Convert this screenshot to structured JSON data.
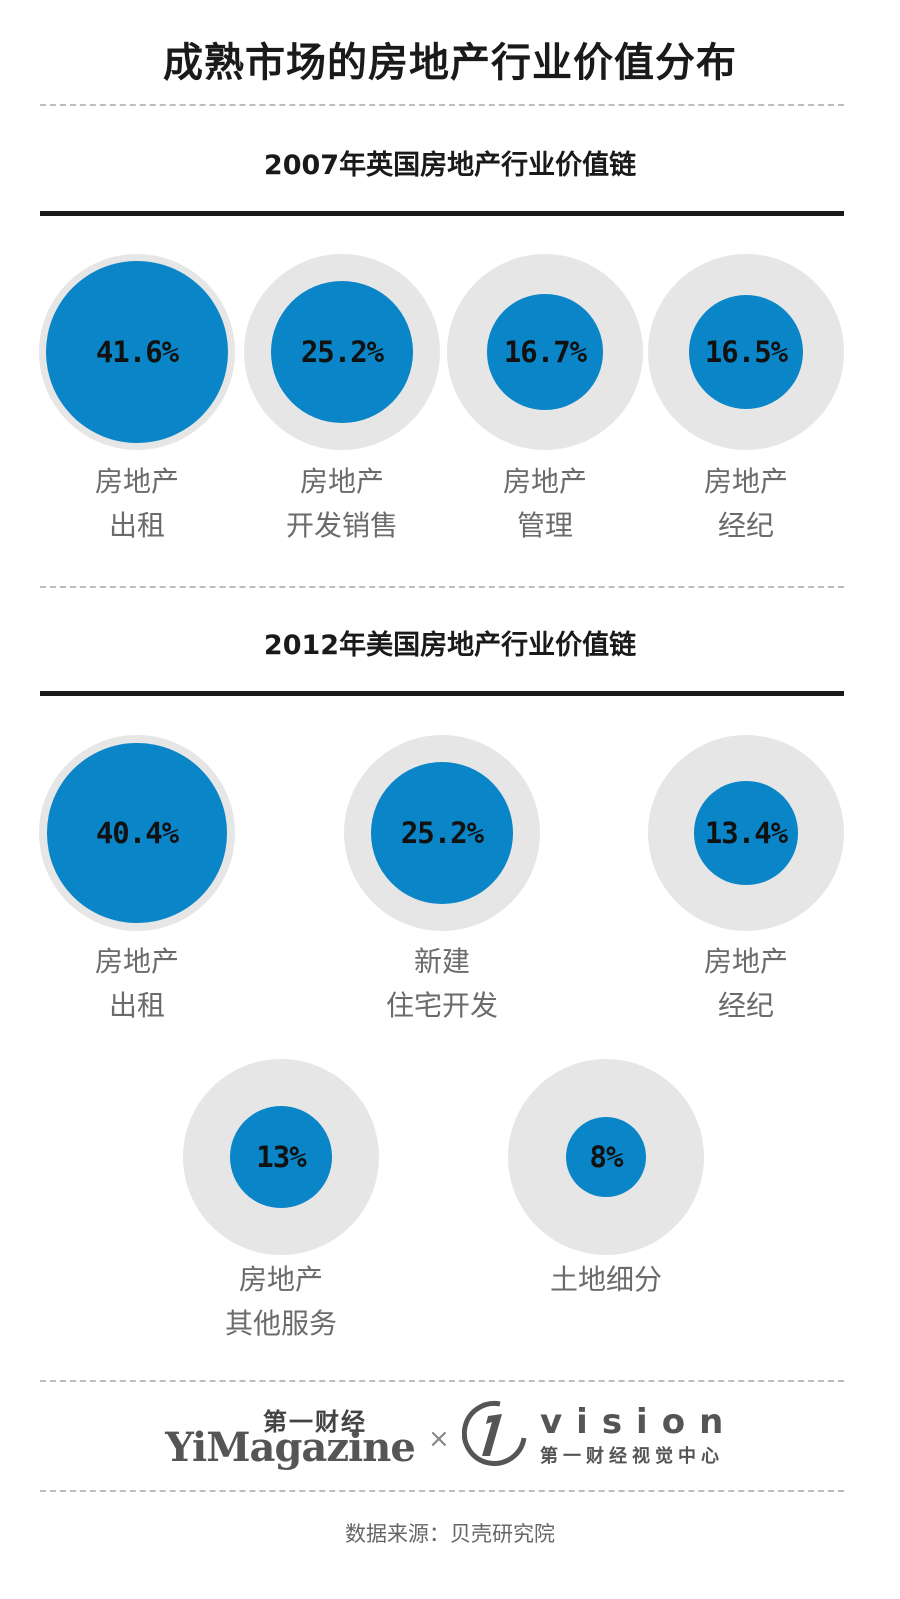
{
  "title": "成熟市场的房地产行业价值分布",
  "chart_data": [
    {
      "type": "bubble",
      "title": "2007年英国房地产行业价值链",
      "items": [
        {
          "value": 41.6,
          "label": "41.6%",
          "name_lines": [
            "房地产",
            "出租"
          ]
        },
        {
          "value": 25.2,
          "label": "25.2%",
          "name_lines": [
            "房地产",
            "开发销售"
          ]
        },
        {
          "value": 16.7,
          "label": "16.7%",
          "name_lines": [
            "房地产",
            "管理"
          ]
        },
        {
          "value": 16.5,
          "label": "16.5%",
          "name_lines": [
            "房地产",
            "经纪"
          ]
        }
      ]
    },
    {
      "type": "bubble",
      "title": "2012年美国房地产行业价值链",
      "items": [
        {
          "value": 40.4,
          "label": "40.4%",
          "name_lines": [
            "房地产",
            "出租"
          ]
        },
        {
          "value": 25.2,
          "label": "25.2%",
          "name_lines": [
            "新建",
            "住宅开发"
          ]
        },
        {
          "value": 13.4,
          "label": "13.4%",
          "name_lines": [
            "房地产",
            "经纪"
          ]
        },
        {
          "value": 13,
          "label": "13%",
          "name_lines": [
            "房地产",
            "其他服务"
          ]
        },
        {
          "value": 8,
          "label": "8%",
          "name_lines": [
            "土地细分"
          ]
        }
      ]
    }
  ],
  "footer": {
    "brand_cn": "第一财经",
    "brand_en": "YiMagazine",
    "separator": "×",
    "vision_word": "vision",
    "vision_cn": "第一财经视觉中心",
    "source": "数据来源：贝壳研究院"
  },
  "colors": {
    "bubble_fill": "#0a85c7",
    "bubble_ring": "#e6e6e6"
  }
}
